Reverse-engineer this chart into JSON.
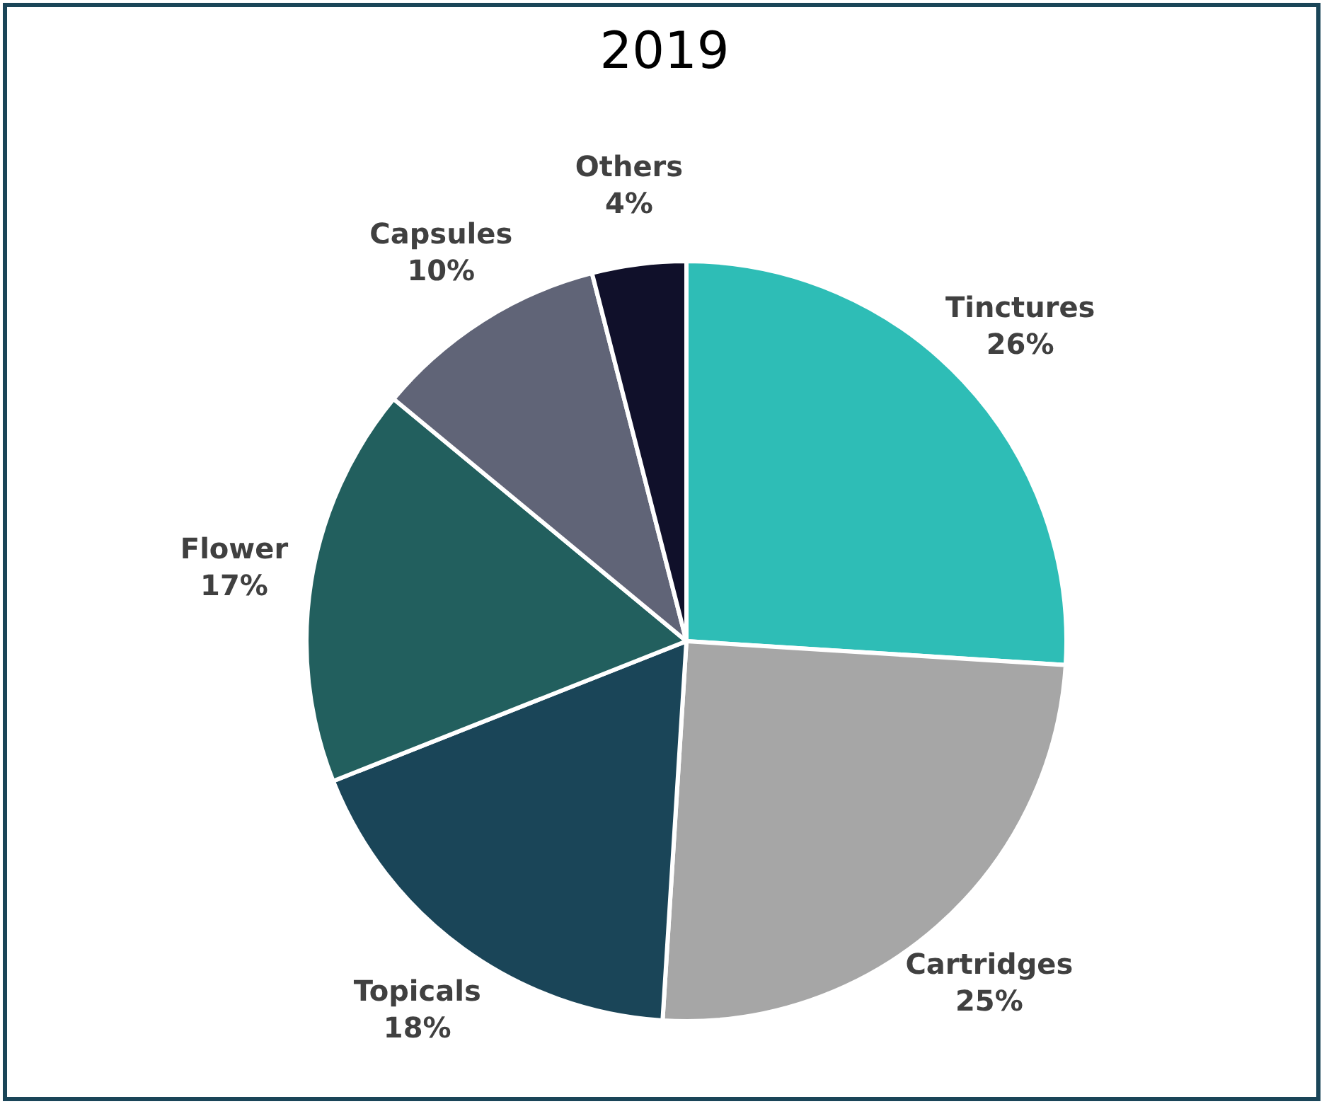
{
  "chart_data": {
    "type": "pie",
    "title": "2019",
    "categories": [
      "Tinctures",
      "Cartridges",
      "Topicals",
      "Flower",
      "Capsules",
      "Others"
    ],
    "values": [
      26,
      25,
      18,
      17,
      10,
      4
    ],
    "value_labels": [
      "26%",
      "25%",
      "18%",
      "17%",
      "10%",
      "4%"
    ],
    "colors": [
      "#2ebdb6",
      "#a6a6a6",
      "#1a4558",
      "#225f5e",
      "#606477",
      "#10102a"
    ],
    "legend": false
  }
}
